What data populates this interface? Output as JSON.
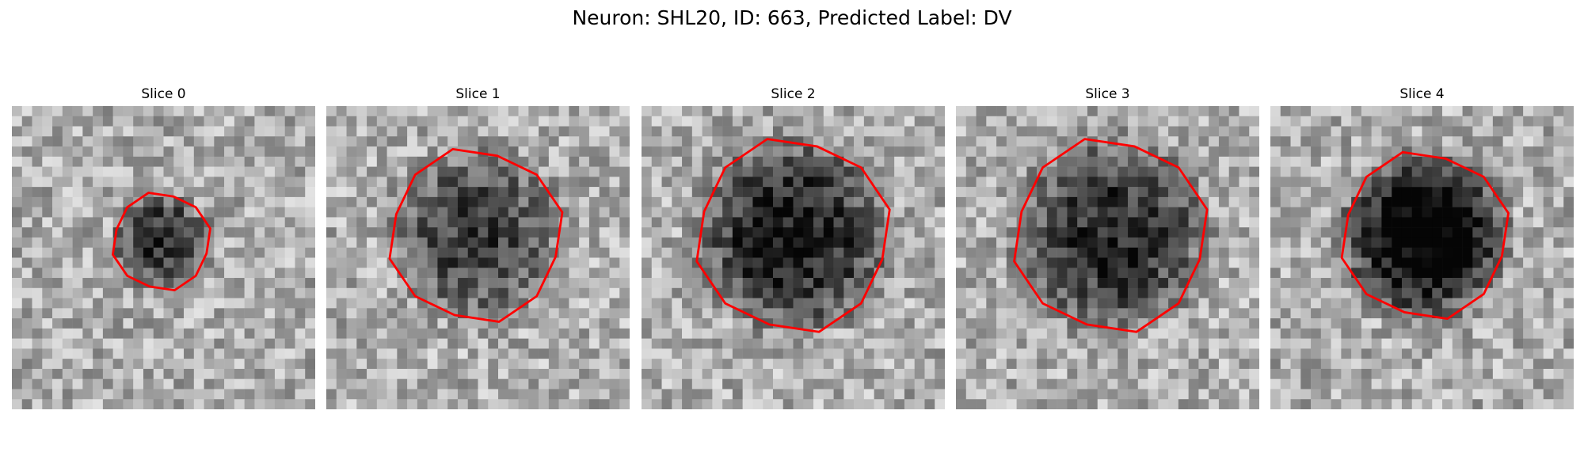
{
  "figure": {
    "title": "Neuron: SHL20, ID: 663, Predicted Label: DV"
  },
  "colors": {
    "contour": "#ff0000",
    "background": "#ffffff"
  },
  "panels": [
    {
      "title": "Slice 0"
    },
    {
      "title": "Slice 1"
    },
    {
      "title": "Slice 2"
    },
    {
      "title": "Slice 3"
    },
    {
      "title": "Slice 4"
    }
  ]
}
